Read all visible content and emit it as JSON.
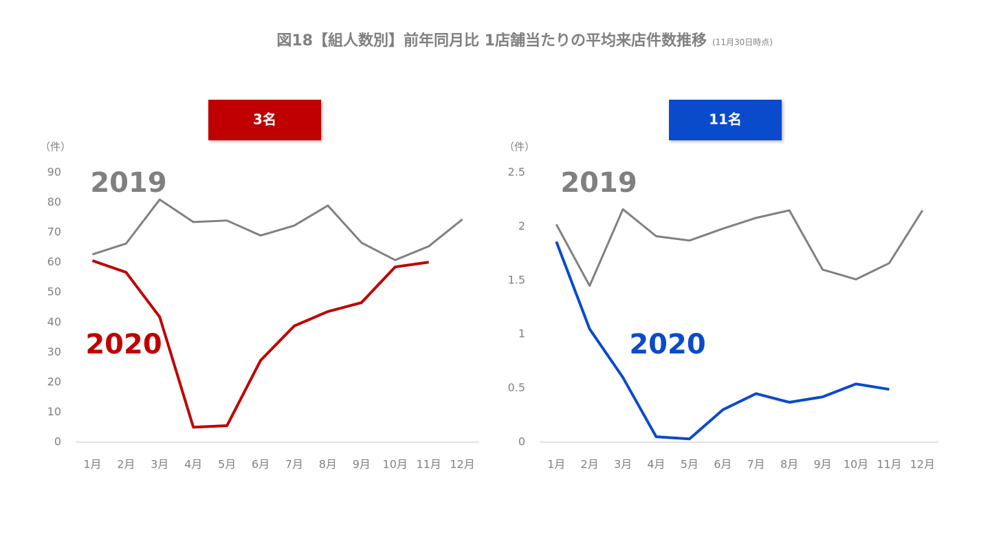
{
  "title": "図18【組人数別】前年同月比 1店舗当たりの平均来店件数推移",
  "subtitle": "(11月30日時点)",
  "chart_data": [
    {
      "type": "line",
      "title": "3名",
      "title_color": "#c00000",
      "y_unit": "（件）",
      "categories": [
        "1月",
        "2月",
        "3月",
        "4月",
        "5月",
        "6月",
        "7月",
        "8月",
        "9月",
        "10月",
        "11月",
        "12月"
      ],
      "ylim": [
        0,
        90
      ],
      "yticks": [
        0,
        10,
        20,
        30,
        40,
        50,
        60,
        70,
        80,
        90
      ],
      "grid": false,
      "series": [
        {
          "name": "2019",
          "color": "#808080",
          "values": [
            62.7,
            66.3,
            81,
            73.5,
            74,
            69,
            72.3,
            79,
            66.6,
            60.8,
            65.4,
            74.4
          ]
        },
        {
          "name": "2020",
          "color": "#c00000",
          "values": [
            60.6,
            56.7,
            41.8,
            5,
            5.5,
            27.3,
            38.8,
            43.6,
            46.6,
            58.5,
            60.1,
            null
          ]
        }
      ]
    },
    {
      "type": "line",
      "title": "11名",
      "title_color": "#0a4bcc",
      "y_unit": "（件）",
      "categories": [
        "1月",
        "2月",
        "3月",
        "4月",
        "5月",
        "6月",
        "7月",
        "8月",
        "9月",
        "10月",
        "11月",
        "12月"
      ],
      "ylim": [
        0,
        2.5
      ],
      "yticks": [
        0,
        0.5,
        1,
        1.5,
        2,
        2.5
      ],
      "grid": false,
      "series": [
        {
          "name": "2019",
          "color": "#808080",
          "values": [
            2.02,
            1.45,
            2.16,
            1.91,
            1.87,
            1.98,
            2.08,
            2.15,
            1.6,
            1.51,
            1.66,
            2.15
          ]
        },
        {
          "name": "2020",
          "color": "#0a4bcc",
          "values": [
            1.86,
            1.05,
            0.6,
            0.05,
            0.03,
            0.3,
            0.45,
            0.37,
            0.42,
            0.54,
            0.49,
            null
          ]
        }
      ]
    }
  ]
}
